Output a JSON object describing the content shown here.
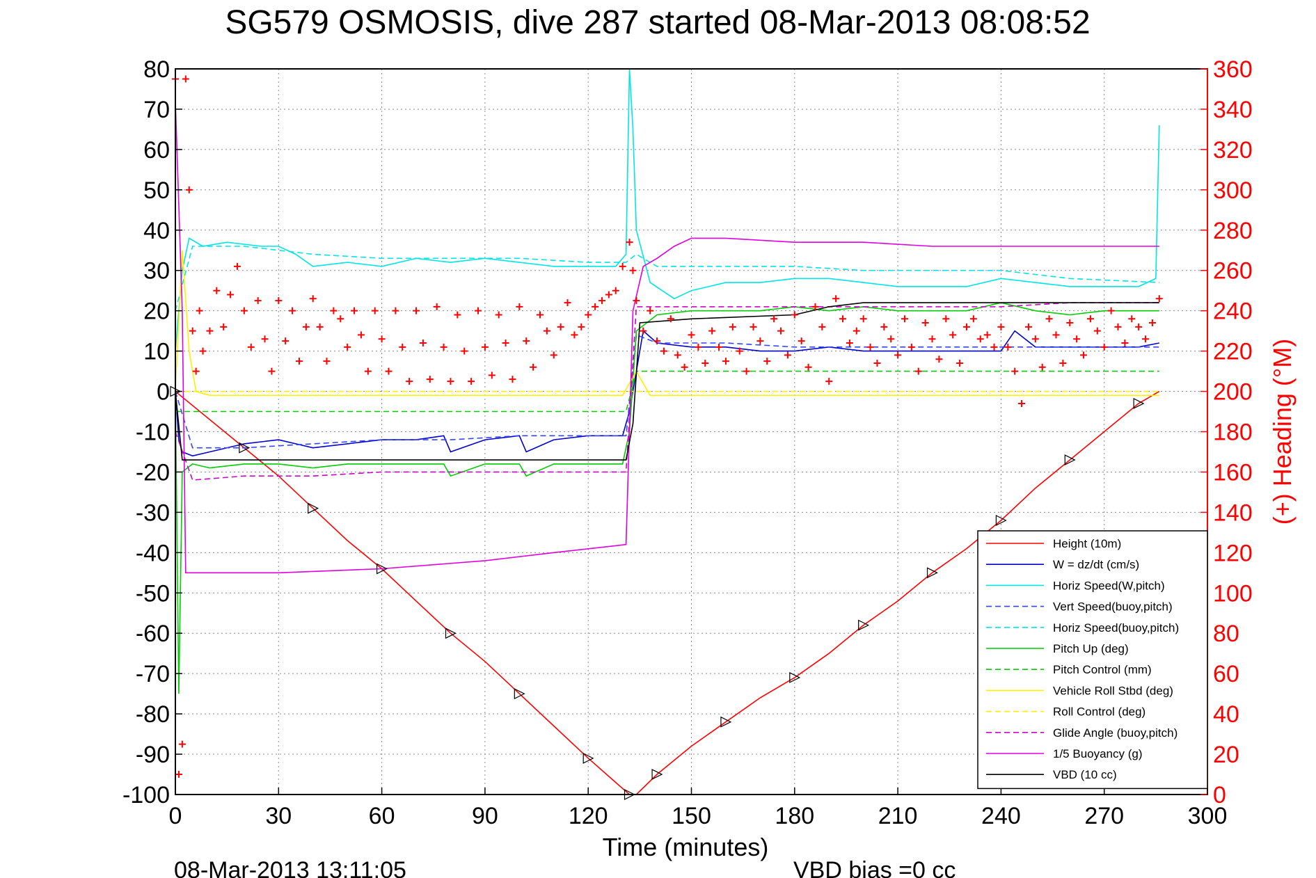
{
  "chart_data": {
    "type": "line",
    "title": "SG579 OSMOSIS, dive 287 started 08-Mar-2013 08:08:52",
    "xlabel": "Time (minutes)",
    "ylabel": "",
    "y2label": "(+) Heading (°M)",
    "footer_left": "08-Mar-2013 13:11:05",
    "footer_right": "VBD bias =0 cc",
    "xlim": [
      0,
      300
    ],
    "ylim": [
      -100,
      80
    ],
    "y2lim": [
      0,
      360
    ],
    "xticks": [
      0,
      30,
      60,
      90,
      120,
      150,
      180,
      210,
      240,
      270,
      300
    ],
    "yticks": [
      80,
      70,
      60,
      50,
      40,
      30,
      20,
      10,
      0,
      -10,
      -20,
      -30,
      -40,
      -50,
      -60,
      -70,
      -80,
      -90,
      -100
    ],
    "y2ticks": [
      360,
      340,
      320,
      300,
      280,
      260,
      240,
      220,
      200,
      180,
      160,
      140,
      120,
      100,
      80,
      60,
      40,
      20,
      0
    ],
    "grid": true,
    "legend_position": "bottom-right",
    "colors": {
      "height": "#ff0000",
      "w": "#0000cc",
      "horiz_speed": "#00e5e5",
      "vert_speed_buoy": "#3344ff",
      "horiz_speed_buoy": "#00e5e5",
      "pitch_up": "#00cc00",
      "pitch_control": "#00cc00",
      "roll": "#ffee00",
      "roll_control": "#ffee00",
      "glide": "#cc00cc",
      "buoyancy": "#dd00dd",
      "vbd": "#000000",
      "heading": "#ff0000"
    },
    "series": [
      {
        "name": "Height (10m)",
        "style": "solid",
        "color": "#ff0000",
        "x": [
          0,
          10,
          20,
          30,
          40,
          50,
          60,
          70,
          80,
          90,
          100,
          110,
          120,
          128,
          132,
          134,
          140,
          150,
          160,
          170,
          180,
          190,
          200,
          210,
          220,
          230,
          240,
          250,
          260,
          270,
          280,
          286
        ],
        "y": [
          0,
          -7,
          -14,
          -21,
          -29,
          -37,
          -44,
          -52,
          -60,
          -67,
          -75,
          -83,
          -91,
          -97,
          -100,
          -100,
          -95,
          -88,
          -82,
          -76,
          -71,
          -65,
          -58,
          -52,
          -45,
          -39,
          -32,
          -24,
          -17,
          -10,
          -3,
          0
        ]
      },
      {
        "name": "W = dz/dt (cm/s)",
        "style": "solid",
        "color": "#0000cc",
        "x": [
          0,
          1,
          2,
          5,
          10,
          20,
          30,
          40,
          50,
          60,
          70,
          78,
          80,
          90,
          100,
          102,
          110,
          120,
          130,
          132,
          134,
          136,
          140,
          150,
          160,
          170,
          180,
          190,
          200,
          210,
          220,
          230,
          240,
          244,
          250,
          260,
          270,
          280,
          286
        ],
        "y": [
          0,
          -12,
          -15,
          -16,
          -15,
          -13,
          -12,
          -14,
          -13,
          -12,
          -12,
          -11,
          -15,
          -12,
          -11,
          -15,
          -12,
          -11,
          -11,
          -5,
          5,
          15,
          12,
          11,
          11,
          10,
          10,
          11,
          10,
          10,
          10,
          10,
          10,
          15,
          11,
          11,
          11,
          11,
          12
        ]
      },
      {
        "name": "Horiz Speed(W,pitch)",
        "style": "solid",
        "color": "#00e5e5",
        "x": [
          0,
          2,
          4,
          8,
          15,
          25,
          30,
          35,
          40,
          50,
          60,
          70,
          80,
          90,
          100,
          110,
          120,
          128,
          131,
          132,
          133,
          134,
          138,
          145,
          150,
          160,
          170,
          180,
          190,
          200,
          210,
          220,
          230,
          240,
          250,
          260,
          270,
          280,
          285,
          286
        ],
        "y": [
          10,
          30,
          38,
          36,
          37,
          36,
          36,
          34,
          31,
          32,
          31,
          33,
          32,
          33,
          32,
          31,
          31,
          31,
          34,
          80,
          65,
          40,
          27,
          23,
          25,
          27,
          27,
          28,
          28,
          27,
          26,
          26,
          26,
          28,
          27,
          26,
          26,
          26,
          28,
          66
        ]
      },
      {
        "name": "Vert Speed(buoy,pitch)",
        "style": "dashed",
        "color": "#3344ff",
        "x": [
          0,
          5,
          20,
          40,
          60,
          80,
          100,
          120,
          131,
          134,
          140,
          160,
          180,
          200,
          220,
          240,
          260,
          286
        ],
        "y": [
          0,
          -14,
          -14,
          -13,
          -12,
          -12,
          -11,
          -11,
          -11,
          14,
          12,
          12,
          11,
          11,
          11,
          11,
          11,
          11
        ]
      },
      {
        "name": "Horiz Speed(buoy,pitch)",
        "style": "dashed",
        "color": "#00e5e5",
        "x": [
          0,
          5,
          20,
          40,
          60,
          80,
          100,
          120,
          131,
          134,
          140,
          160,
          180,
          200,
          220,
          240,
          260,
          286
        ],
        "y": [
          20,
          36,
          36,
          34,
          33,
          33,
          33,
          32,
          32,
          34,
          31,
          31,
          31,
          30,
          30,
          30,
          28,
          27
        ]
      },
      {
        "name": "Pitch Up (deg)",
        "style": "solid",
        "color": "#00cc00",
        "x": [
          0,
          1,
          2,
          5,
          10,
          20,
          30,
          40,
          50,
          60,
          70,
          78,
          80,
          90,
          100,
          102,
          110,
          120,
          130,
          132,
          134,
          140,
          150,
          160,
          170,
          180,
          190,
          200,
          210,
          220,
          230,
          240,
          250,
          260,
          270,
          280,
          286
        ],
        "y": [
          0,
          -75,
          -20,
          -18,
          -19,
          -18,
          -18,
          -19,
          -18,
          -18,
          -18,
          -18,
          -21,
          -18,
          -18,
          -21,
          -18,
          -18,
          -18,
          -10,
          15,
          19,
          20,
          20,
          20,
          21,
          20,
          21,
          20,
          20,
          20,
          22,
          20,
          19,
          20,
          20,
          20
        ]
      },
      {
        "name": "Pitch Control (mm)",
        "style": "dashed",
        "color": "#00cc00",
        "x": [
          0,
          5,
          40,
          80,
          120,
          131,
          134,
          180,
          240,
          286
        ],
        "y": [
          -5,
          -5,
          -5,
          -5,
          -5,
          -5,
          5,
          5,
          5,
          5
        ]
      },
      {
        "name": "Vehicle Roll Stbd (deg)",
        "style": "solid",
        "color": "#ffee00",
        "x": [
          0,
          2,
          4,
          6,
          10,
          20,
          30,
          40,
          50,
          60,
          70,
          80,
          90,
          100,
          110,
          120,
          130,
          134,
          138,
          150,
          160,
          170,
          180,
          190,
          200,
          210,
          220,
          230,
          240,
          250,
          260,
          270,
          280,
          286
        ],
        "y": [
          0,
          35,
          10,
          0,
          -1,
          -1,
          -1,
          -1,
          -1,
          -1,
          -1,
          -1,
          -1,
          -1,
          -1,
          -1,
          -1,
          5,
          -1,
          -1,
          -1,
          -1,
          -1,
          -1,
          -1,
          -1,
          -1,
          -1,
          -1,
          -1,
          -1,
          -1,
          -1,
          -1
        ]
      },
      {
        "name": "Roll Control (deg)",
        "style": "dashed",
        "color": "#ffee00",
        "x": [
          0,
          286
        ],
        "y": [
          0,
          0
        ]
      },
      {
        "name": "Glide Angle (buoy,pitch)",
        "style": "dashed",
        "color": "#cc00cc",
        "x": [
          0,
          5,
          20,
          40,
          60,
          80,
          100,
          120,
          131,
          134,
          140,
          160,
          180,
          200,
          220,
          240,
          260,
          286
        ],
        "y": [
          -10,
          -22,
          -21,
          -21,
          -20,
          -20,
          -20,
          -20,
          -20,
          21,
          21,
          21,
          21,
          21,
          21,
          21,
          22,
          22
        ]
      },
      {
        "name": "1/5 Buoyancy (g)",
        "style": "solid",
        "color": "#dd00dd",
        "x": [
          0,
          2,
          3,
          30,
          60,
          90,
          110,
          131,
          133,
          136,
          140,
          145,
          150,
          160,
          180,
          200,
          220,
          240,
          260,
          286
        ],
        "y": [
          72,
          20,
          -45,
          -45,
          -44,
          -42,
          -40,
          -38,
          20,
          31,
          33,
          36,
          38,
          38,
          37,
          37,
          36,
          36,
          36,
          36
        ]
      },
      {
        "name": "VBD (10 cc)",
        "style": "solid",
        "color": "#000000",
        "x": [
          0,
          2,
          3,
          20,
          60,
          100,
          131,
          133,
          135,
          150,
          180,
          190,
          200,
          220,
          240,
          260,
          286
        ],
        "y": [
          0,
          -17,
          -17,
          -17,
          -17,
          -17,
          -17,
          -8,
          17,
          18,
          19,
          21,
          22,
          22,
          22,
          22,
          22
        ]
      }
    ],
    "heading_series": {
      "name": "(+) Heading (°M)",
      "color": "#ff0000",
      "x": [
        0,
        1,
        2,
        3,
        4,
        5,
        6,
        7,
        8,
        10,
        12,
        14,
        16,
        18,
        20,
        22,
        24,
        26,
        28,
        30,
        32,
        34,
        36,
        38,
        40,
        42,
        44,
        46,
        48,
        50,
        52,
        54,
        56,
        58,
        60,
        62,
        64,
        66,
        68,
        70,
        72,
        74,
        76,
        78,
        80,
        82,
        84,
        86,
        88,
        90,
        92,
        94,
        96,
        98,
        100,
        102,
        104,
        106,
        108,
        110,
        112,
        114,
        116,
        118,
        120,
        122,
        124,
        126,
        128,
        130,
        132,
        133,
        134,
        136,
        138,
        140,
        142,
        144,
        146,
        148,
        150,
        152,
        154,
        156,
        158,
        160,
        162,
        164,
        166,
        168,
        170,
        172,
        174,
        176,
        178,
        180,
        182,
        184,
        186,
        188,
        190,
        192,
        194,
        196,
        198,
        200,
        202,
        204,
        206,
        208,
        210,
        212,
        214,
        216,
        218,
        220,
        222,
        224,
        226,
        228,
        230,
        232,
        234,
        236,
        238,
        240,
        242,
        244,
        246,
        248,
        250,
        252,
        254,
        256,
        258,
        260,
        262,
        264,
        266,
        268,
        270,
        272,
        274,
        276,
        278,
        280,
        282,
        284,
        286
      ],
      "y": [
        355,
        10,
        25,
        355,
        300,
        230,
        210,
        240,
        220,
        230,
        250,
        232,
        248,
        262,
        240,
        222,
        245,
        226,
        210,
        245,
        225,
        240,
        215,
        232,
        246,
        232,
        215,
        240,
        236,
        222,
        240,
        228,
        210,
        240,
        226,
        210,
        240,
        222,
        205,
        240,
        224,
        206,
        242,
        222,
        205,
        238,
        220,
        205,
        240,
        222,
        208,
        238,
        224,
        206,
        242,
        225,
        212,
        238,
        230,
        218,
        232,
        244,
        228,
        232,
        238,
        242,
        245,
        248,
        250,
        262,
        274,
        260,
        245,
        230,
        240,
        225,
        220,
        236,
        218,
        212,
        228,
        222,
        214,
        230,
        222,
        215,
        232,
        220,
        210,
        232,
        225,
        215,
        236,
        230,
        218,
        238,
        225,
        212,
        242,
        232,
        205,
        246,
        236,
        224,
        230,
        236,
        222,
        214,
        232,
        226,
        218,
        236,
        222,
        210,
        234,
        226,
        216,
        236,
        228,
        214,
        232,
        236,
        226,
        228,
        222,
        232,
        222,
        210,
        194,
        232,
        226,
        212,
        236,
        228,
        214,
        234,
        226,
        218,
        236,
        230,
        222,
        240,
        232,
        224,
        236,
        232,
        226,
        234,
        246
      ]
    }
  }
}
